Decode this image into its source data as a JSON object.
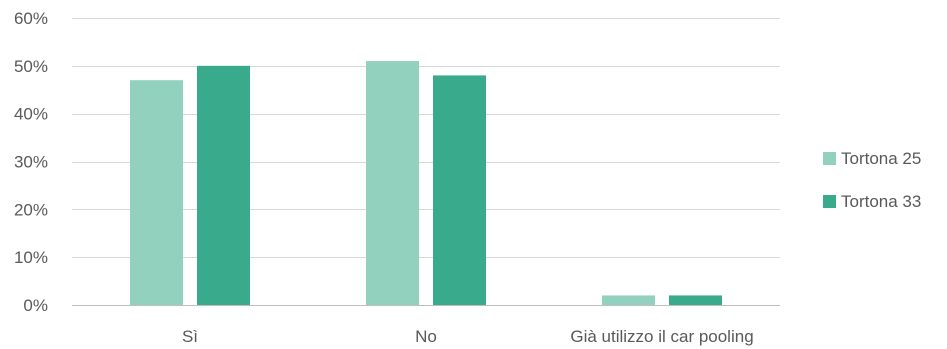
{
  "chart_data": {
    "type": "bar",
    "title": "",
    "xlabel": "",
    "ylabel": "",
    "categories": [
      "Sì",
      "No",
      "Già utilizzo il car pooling"
    ],
    "series": [
      {
        "name": "Tortona 25",
        "values": [
          47,
          51,
          2
        ],
        "color": "#93d1bf"
      },
      {
        "name": "Tortona 33",
        "values": [
          50,
          48,
          2
        ],
        "color": "#3aaa8c"
      }
    ],
    "ylim": [
      0,
      60
    ],
    "yticks": [
      0,
      10,
      20,
      30,
      40,
      50,
      60
    ],
    "ytick_labels": [
      "0%",
      "10%",
      "20%",
      "30%",
      "40%",
      "50%",
      "60%"
    ],
    "grid": true,
    "legend_position": "right"
  }
}
